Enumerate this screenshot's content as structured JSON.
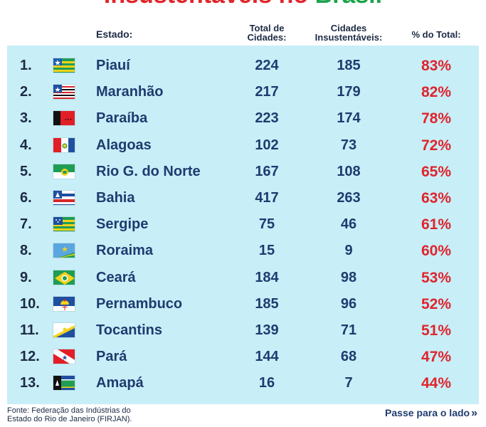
{
  "title": {
    "part1": "Insustentáveis",
    "part2": " no ",
    "part3": "Brasil"
  },
  "headers": {
    "estado": "Estado:",
    "total_line1": "Total de",
    "total_line2": "Cidades:",
    "cid_line1": "Cidades",
    "cid_line2": "Insustentáveis:",
    "pct": "% do Total:"
  },
  "rows": [
    {
      "rank": "1.",
      "state": "Piauí",
      "total": "224",
      "unsust": "185",
      "pct": "83%",
      "flag": "piaui-flag-icon"
    },
    {
      "rank": "2.",
      "state": "Maranhão",
      "total": "217",
      "unsust": "179",
      "pct": "82%",
      "flag": "maranhao-flag-icon"
    },
    {
      "rank": "3.",
      "state": "Paraíba",
      "total": "223",
      "unsust": "174",
      "pct": "78%",
      "flag": "paraiba-flag-icon"
    },
    {
      "rank": "4.",
      "state": "Alagoas",
      "total": "102",
      "unsust": "73",
      "pct": "72%",
      "flag": "alagoas-flag-icon"
    },
    {
      "rank": "5.",
      "state": "Rio G. do Norte",
      "total": "167",
      "unsust": "108",
      "pct": "65%",
      "flag": "rio-grande-do-norte-flag-icon"
    },
    {
      "rank": "6.",
      "state": "Bahia",
      "total": "417",
      "unsust": "263",
      "pct": "63%",
      "flag": "bahia-flag-icon"
    },
    {
      "rank": "7.",
      "state": "Sergipe",
      "total": "75",
      "unsust": "46",
      "pct": "61%",
      "flag": "sergipe-flag-icon"
    },
    {
      "rank": "8.",
      "state": "Roraima",
      "total": "15",
      "unsust": "9",
      "pct": "60%",
      "flag": "roraima-flag-icon"
    },
    {
      "rank": "9.",
      "state": "Ceará",
      "total": "184",
      "unsust": "98",
      "pct": "53%",
      "flag": "ceara-flag-icon"
    },
    {
      "rank": "10.",
      "state": "Pernambuco",
      "total": "185",
      "unsust": "96",
      "pct": "52%",
      "flag": "pernambuco-flag-icon"
    },
    {
      "rank": "11.",
      "state": "Tocantins",
      "total": "139",
      "unsust": "71",
      "pct": "51%",
      "flag": "tocantins-flag-icon"
    },
    {
      "rank": "12.",
      "state": "Pará",
      "total": "144",
      "unsust": "68",
      "pct": "47%",
      "flag": "para-flag-icon"
    },
    {
      "rank": "13.",
      "state": "Amapá",
      "total": "16",
      "unsust": "7",
      "pct": "44%",
      "flag": "amapa-flag-icon"
    }
  ],
  "footer": {
    "source_line1": "Fonte: Federação das Indústrias do",
    "source_line2": "Estado do Rio de Janeiro (FIRJAN).",
    "next": "Passe para o lado",
    "next_icon": "double-chevron-right-icon"
  },
  "colors": {
    "panel": "#c8eef8",
    "text": "#1f3b6e",
    "accent": "#e0242b"
  }
}
